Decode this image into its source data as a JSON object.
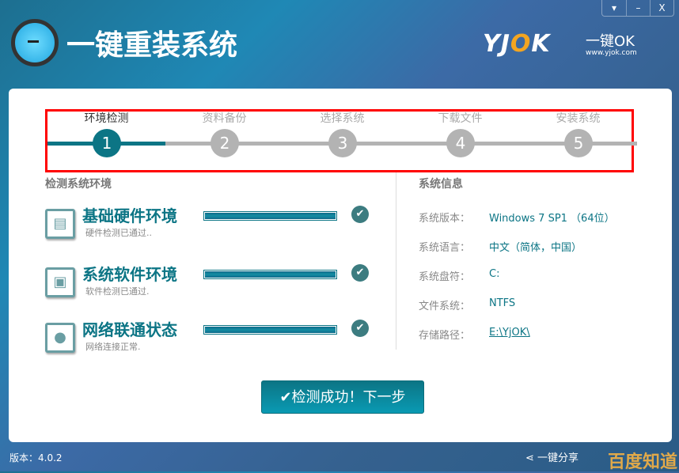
{
  "window": {
    "menu_icon": "▾",
    "minimize_icon": "–",
    "close_icon": "X"
  },
  "header": {
    "title": "一键重装系统",
    "brand": {
      "y": "YJ",
      "o": "O",
      "k": "K",
      "slogan": "一键OK",
      "url": "www.yjok.com"
    }
  },
  "steps": [
    {
      "label": "环境检测",
      "num": "1",
      "active": true
    },
    {
      "label": "资料备份",
      "num": "2"
    },
    {
      "label": "选择系统",
      "num": "3"
    },
    {
      "label": "下载文件",
      "num": "4"
    },
    {
      "label": "安装系统",
      "num": "5"
    }
  ],
  "detect": {
    "title": "检测系统环境",
    "items": [
      {
        "name": "基础硬件环境",
        "status": "硬件检测已通过..",
        "progress": 100,
        "icon": "hardware-icon"
      },
      {
        "name": "系统软件环境",
        "status": "软件检测已通过.",
        "progress": 100,
        "icon": "monitor-icon"
      },
      {
        "name": "网络联通状态",
        "status": "网络连接正常.",
        "progress": 100,
        "icon": "globe-icon"
      }
    ]
  },
  "sysinfo": {
    "title": "系统信息",
    "rows": [
      {
        "key": "系统版本：",
        "value": "Windows 7 SP1 （64位）"
      },
      {
        "key": "系统语言：",
        "value": "中文（简体，中国）"
      },
      {
        "key": "系统盘符：",
        "value": "C:"
      },
      {
        "key": "文件系统：",
        "value": "NTFS"
      },
      {
        "key": "存储路径：",
        "value": "E:\\YjOK\\"
      }
    ]
  },
  "next_button": "✔检测成功！下一步",
  "footer": {
    "version": "版本：4.0.2",
    "share": "一键分享",
    "watermark": "百度知道"
  },
  "colors": {
    "accent": "#0c7585",
    "inactive": "#b3b3b3",
    "highlight": "#ff0000"
  }
}
